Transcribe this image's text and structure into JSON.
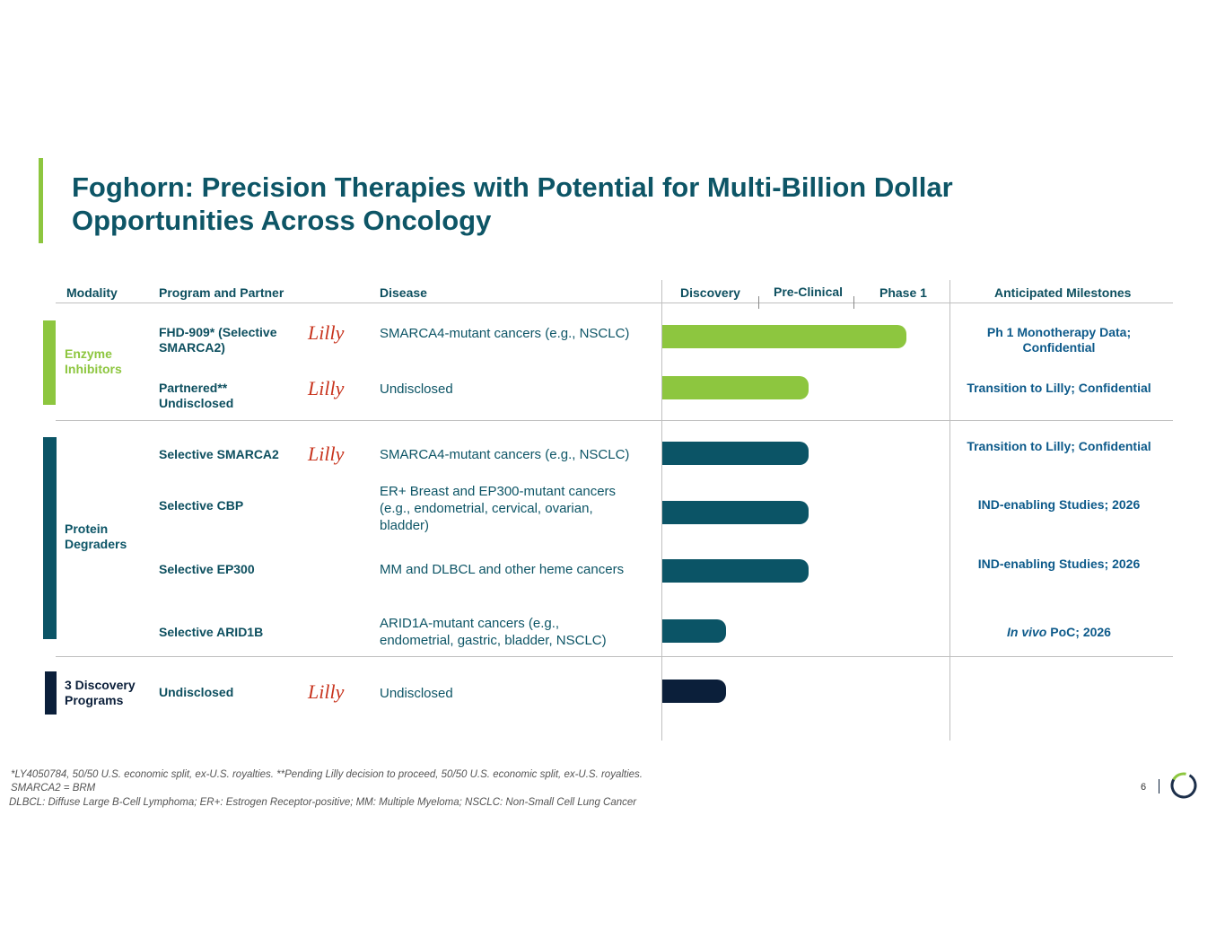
{
  "title": "Foghorn: Precision Therapies with Potential for Multi-Billion Dollar Opportunities Across Oncology",
  "headers": {
    "modality": "Modality",
    "program": "Program and Partner",
    "disease": "Disease",
    "discovery": "Discovery",
    "preclinical": "Pre-Clinical",
    "phase1": "Phase 1",
    "milestones": "Anticipated Milestones"
  },
  "modalities": {
    "enzyme": "Enzyme Inhibitors",
    "degraders": "Protein Degraders",
    "discovery": "3 Discovery Programs"
  },
  "partner_logo": "Lilly",
  "rows": [
    {
      "program": "FHD-909* (Selective SMARCA2)",
      "disease": "SMARCA4-mutant cancers (e.g., NSCLC)",
      "milestone": "Ph 1 Monotherapy Data; Confidential",
      "progress_stages": 2.55
    },
    {
      "program": "Partnered** Undisclosed",
      "disease": "Undisclosed",
      "milestone": "Transition to Lilly; Confidential",
      "progress_stages": 1.53
    },
    {
      "program": "Selective SMARCA2",
      "disease": "SMARCA4-mutant cancers (e.g., NSCLC)",
      "milestone": "Transition to Lilly; Confidential",
      "progress_stages": 1.53
    },
    {
      "program": "Selective CBP",
      "disease": "ER+ Breast and EP300-mutant cancers (e.g., endometrial, cervical, ovarian, bladder)",
      "milestone": "IND-enabling Studies; 2026",
      "progress_stages": 1.53
    },
    {
      "program": "Selective EP300",
      "disease": "MM and DLBCL and other heme cancers",
      "milestone": "IND-enabling Studies; 2026",
      "progress_stages": 1.53
    },
    {
      "program": "Selective ARID1B",
      "disease": "ARID1A-mutant cancers (e.g., endometrial, gastric, bladder, NSCLC)",
      "milestone_italic": "In vivo",
      "milestone": " PoC; 2026",
      "progress_stages": 0.67
    },
    {
      "program": "Undisclosed",
      "disease": "Undisclosed",
      "milestone": "",
      "progress_stages": 0.67
    }
  ],
  "colors": {
    "enzyme": "#8dc63f",
    "degrader": "#0b5466",
    "discovery": "#0b1f3a"
  },
  "footnotes": [
    "*LY4050784, 50/50 U.S. economic split, ex-U.S. royalties. **Pending Lilly decision to proceed, 50/50 U.S. economic split, ex-U.S. royalties.",
    "SMARCA2 = BRM",
    "DLBCL: Diffuse Large B-Cell Lymphoma; ER+: Estrogen Receptor-positive; MM: Multiple Myeloma; NSCLC: Non-Small Cell Lung Cancer"
  ],
  "page_number": "6"
}
